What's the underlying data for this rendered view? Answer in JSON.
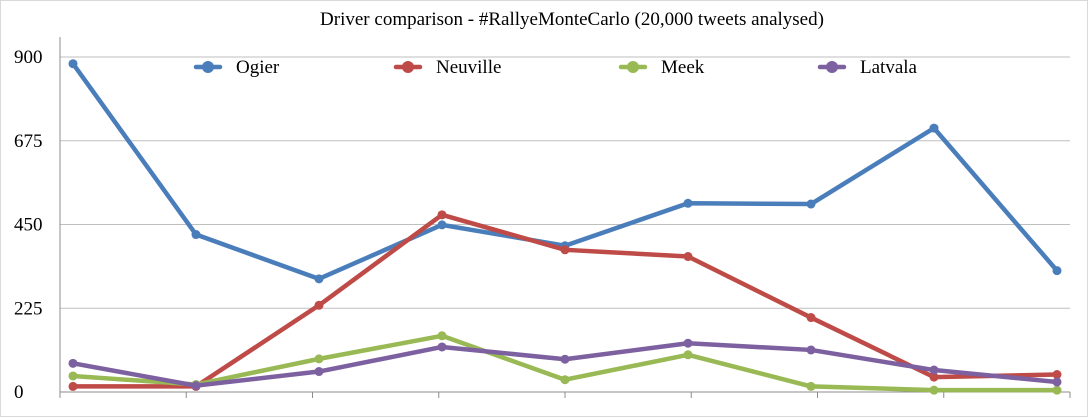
{
  "chart_data": {
    "type": "line",
    "title": "Driver comparison - #RallyeMonteCarlo (20,000 tweets analysed)",
    "xlabel": "",
    "ylabel": "",
    "ylim": [
      0,
      900
    ],
    "yticks": [
      "0",
      "225",
      "450",
      "675",
      "900"
    ],
    "grid": "horizontal",
    "legend_placement": "top",
    "x": [
      1,
      2,
      3,
      4,
      5,
      6,
      7,
      8,
      9
    ],
    "series": [
      {
        "name": "Ogier",
        "color": "#4a7ebb",
        "values": [
          882,
          423,
          304,
          449,
          393,
          507,
          505,
          709,
          326
        ]
      },
      {
        "name": "Neuville",
        "color": "#be4b48",
        "values": [
          15,
          15,
          233,
          476,
          382,
          364,
          200,
          40,
          47
        ]
      },
      {
        "name": "Meek",
        "color": "#98b954",
        "values": [
          43,
          20,
          89,
          151,
          33,
          100,
          15,
          5,
          5
        ]
      },
      {
        "name": "Latvala",
        "color": "#7d60a0",
        "values": [
          77,
          17,
          55,
          121,
          88,
          131,
          113,
          59,
          27
        ]
      }
    ]
  }
}
